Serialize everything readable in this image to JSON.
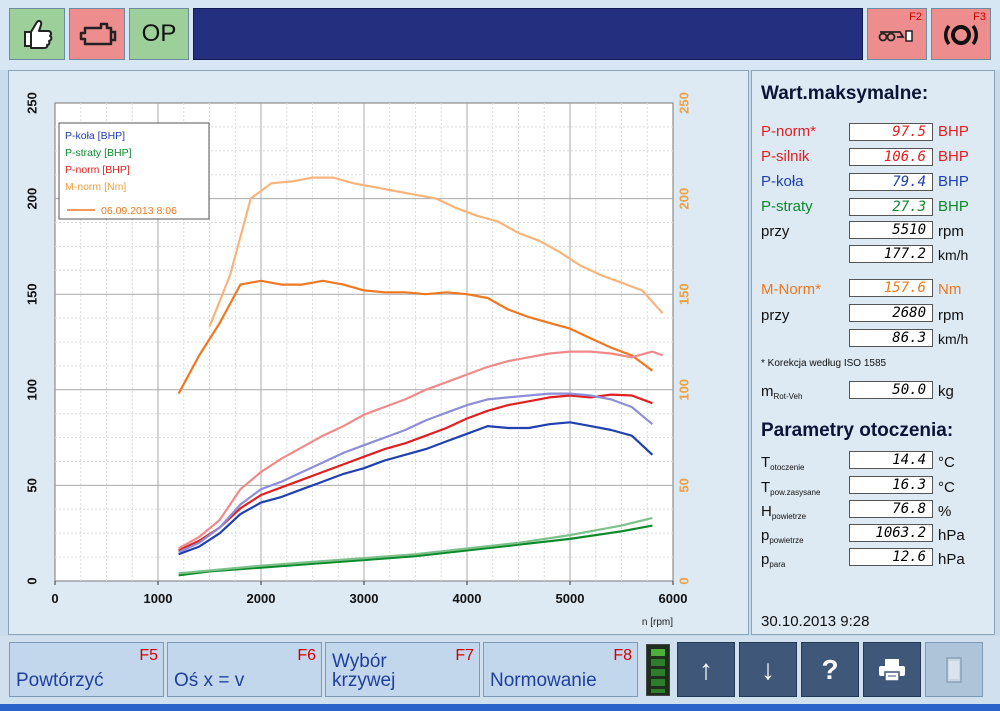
{
  "toolbar": {
    "op_label": "OP",
    "f2_key": "F2",
    "f3_key": "F3",
    "title": ""
  },
  "chart_data": {
    "type": "line",
    "xlabel": "n [rpm]",
    "xlim": [
      0,
      6000
    ],
    "xticks": [
      0,
      1000,
      2000,
      3000,
      4000,
      5000,
      6000
    ],
    "ylim_left": [
      0,
      250
    ],
    "yticks_left": [
      0,
      50,
      100,
      150,
      200,
      250
    ],
    "ylim_right": [
      0,
      250
    ],
    "yticks_right": [
      0,
      50,
      100,
      150,
      200,
      250
    ],
    "grid": true,
    "legend_position": "top-left",
    "legend": [
      "P-koła [BHP]",
      "P-straty [BHP]",
      "P-norm [BHP]",
      "M-norm [Nm]"
    ],
    "legend_run": "06.09.2013 8:06",
    "series": [
      {
        "name": "M-norm [Nm]",
        "color": "#f07820",
        "axis": "right",
        "x": [
          1200,
          1400,
          1600,
          1800,
          2000,
          2200,
          2400,
          2600,
          2800,
          3000,
          3200,
          3400,
          3600,
          3800,
          4000,
          4200,
          4400,
          4600,
          4800,
          5000,
          5200,
          5400,
          5600,
          5800
        ],
        "values": [
          98,
          118,
          135,
          155,
          157,
          155,
          155,
          157,
          155,
          152,
          151,
          151,
          150,
          151,
          150,
          148,
          142,
          138,
          135,
          132,
          127,
          122,
          118,
          110
        ]
      },
      {
        "name": "M-norm [Nm] (ref)",
        "color": "#f8b47a",
        "axis": "right",
        "x": [
          1500,
          1700,
          1900,
          2100,
          2300,
          2500,
          2700,
          2900,
          3100,
          3300,
          3500,
          3700,
          3900,
          4100,
          4300,
          4500,
          4700,
          4900,
          5100,
          5300,
          5500,
          5700,
          5900
        ],
        "values": [
          133,
          160,
          200,
          208,
          209,
          211,
          211,
          208,
          206,
          204,
          202,
          200,
          195,
          191,
          188,
          182,
          178,
          172,
          165,
          160,
          156,
          152,
          140
        ]
      },
      {
        "name": "P-norm [BHP]",
        "color": "#e02020",
        "axis": "left",
        "x": [
          1200,
          1400,
          1600,
          1800,
          2000,
          2200,
          2400,
          2600,
          2800,
          3000,
          3200,
          3400,
          3600,
          3800,
          4000,
          4200,
          4400,
          4600,
          4800,
          5000,
          5200,
          5400,
          5600,
          5800
        ],
        "values": [
          16,
          21,
          28,
          38,
          45,
          49,
          53,
          57,
          61,
          65,
          69,
          72,
          76,
          80,
          85,
          89,
          92,
          94,
          96,
          97,
          96,
          97.5,
          97,
          93
        ]
      },
      {
        "name": "P-koła [BHP]",
        "color": "#2040b0",
        "axis": "left",
        "x": [
          1200,
          1400,
          1600,
          1800,
          2000,
          2200,
          2400,
          2600,
          2800,
          3000,
          3200,
          3400,
          3600,
          3800,
          4000,
          4200,
          4400,
          4600,
          4800,
          5000,
          5200,
          5400,
          5600,
          5800
        ],
        "values": [
          14,
          18,
          25,
          35,
          41,
          44,
          48,
          52,
          56,
          59,
          63,
          66,
          69,
          73,
          77,
          81,
          80,
          80,
          82,
          83,
          81,
          79,
          76,
          66
        ]
      },
      {
        "name": "P-norm [BHP] (ref)",
        "color": "#f08a8a",
        "axis": "left",
        "x": [
          1200,
          1400,
          1600,
          1800,
          2000,
          2200,
          2400,
          2600,
          2800,
          3000,
          3200,
          3400,
          3600,
          3800,
          4000,
          4200,
          4400,
          4600,
          4800,
          5000,
          5200,
          5400,
          5600,
          5800,
          5900
        ],
        "values": [
          17,
          23,
          32,
          48,
          57,
          64,
          70,
          76,
          81,
          87,
          91,
          95,
          100,
          104,
          108,
          112,
          115,
          117,
          119,
          120,
          120,
          119,
          117,
          120,
          118
        ]
      },
      {
        "name": "P-koła [BHP] (ref)",
        "color": "#8e8ed8",
        "axis": "left",
        "x": [
          1200,
          1400,
          1600,
          1800,
          2000,
          2200,
          2400,
          2600,
          2800,
          3000,
          3200,
          3400,
          3600,
          3800,
          4000,
          4200,
          4400,
          4600,
          4800,
          5000,
          5200,
          5400,
          5600,
          5800
        ],
        "values": [
          15,
          20,
          28,
          40,
          48,
          52,
          57,
          62,
          67,
          71,
          75,
          79,
          84,
          88,
          92,
          95,
          96,
          97,
          98,
          98,
          97,
          95,
          91,
          82
        ]
      },
      {
        "name": "P-straty [BHP]",
        "color": "#0a8a2a",
        "axis": "left",
        "x": [
          1200,
          1500,
          2000,
          2500,
          3000,
          3500,
          4000,
          4500,
          5000,
          5500,
          5800
        ],
        "values": [
          3,
          5,
          7,
          9,
          11,
          13,
          16,
          19,
          22,
          26,
          29
        ]
      },
      {
        "name": "P-straty [BHP] (ref)",
        "color": "#7cc08a",
        "axis": "left",
        "x": [
          1200,
          1500,
          2000,
          2500,
          3000,
          3500,
          4000,
          4500,
          5000,
          5500,
          5800
        ],
        "values": [
          4,
          5.5,
          8,
          10,
          12,
          14,
          17,
          20,
          24,
          29,
          33
        ]
      }
    ]
  },
  "max_panel": {
    "title": "Wart.maksymalne:",
    "p_norm_label": "P-norm*",
    "p_norm_value": "97.5",
    "p_norm_unit": "BHP",
    "p_silnik_label": "P-silnik",
    "p_silnik_value": "106.6",
    "p_silnik_unit": "BHP",
    "p_kola_label": "P-koła",
    "p_kola_value": "79.4",
    "p_kola_unit": "BHP",
    "p_straty_label": "P-straty",
    "p_straty_value": "27.3",
    "p_straty_unit": "BHP",
    "przy1_label": "przy",
    "rpm1_value": "5510",
    "rpm1_unit": "rpm",
    "kmh1_value": "177.2",
    "kmh1_unit": "km/h",
    "m_norm_label": "M-Norm*",
    "m_norm_value": "157.6",
    "m_norm_unit": "Nm",
    "przy2_label": "przy",
    "rpm2_value": "2680",
    "rpm2_unit": "rpm",
    "kmh2_value": "86.3",
    "kmh2_unit": "km/h",
    "footnote": "* Korekcja według ISO 1585",
    "mass_main": "m",
    "mass_sub": "Rot-Veh",
    "mass_value": "50.0",
    "mass_unit": "kg"
  },
  "env_panel": {
    "title": "Parametry otoczenia:",
    "t_ot_main": "T",
    "t_ot_sub": "otoczenie",
    "t_ot_value": "14.4",
    "t_ot_unit": "°C",
    "t_pz_main": "T",
    "t_pz_sub": "pow.zasysane",
    "t_pz_value": "16.3",
    "t_pz_unit": "°C",
    "h_main": "H",
    "h_sub": "powietrze",
    "h_value": "76.8",
    "h_unit": "%",
    "p_pow_main": "p",
    "p_pow_sub": "powietrze",
    "p_pow_value": "1063.2",
    "p_pow_unit": "hPa",
    "p_para_main": "p",
    "p_para_sub": "para",
    "p_para_value": "12.6",
    "p_para_unit": "hPa",
    "datetime": "30.10.2013 9:28"
  },
  "bottom": {
    "f5_label": "Powtórzyć",
    "f5_key": "F5",
    "f6_label": "Oś x = v",
    "f6_key": "F6",
    "f7_label_line1": "Wybór",
    "f7_label_line2": "krzywej",
    "f7_key": "F7",
    "f8_label": "Normowanie",
    "f8_key": "F8",
    "up_glyph": "↑",
    "down_glyph": "↓",
    "help_glyph": "?"
  },
  "colors": {
    "title_bar": "#24307f",
    "green_button": "#9ccf9a",
    "red_button": "#ee8d8d",
    "torque": "#f07820",
    "p_norm": "#e02020",
    "p_kola": "#2040b0",
    "p_straty": "#0a8a2a"
  }
}
